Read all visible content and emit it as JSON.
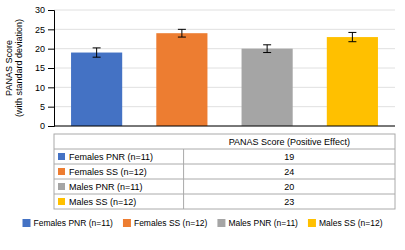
{
  "chart_data": {
    "type": "bar",
    "categories": [
      "Females PNR (n=11)",
      "Females SS (n=12)",
      "Males PNR (n=11)",
      "Males SS (n=12)"
    ],
    "values": [
      19,
      24,
      20,
      23
    ],
    "errors": [
      1.2,
      1.0,
      1.0,
      1.2
    ],
    "colors": [
      "#4472C4",
      "#ED7D31",
      "#A5A5A5",
      "#FFC000"
    ],
    "ylabel": "PANAS Score\n(with standard deviation)",
    "table_header": "PANAS Score (Positive Effect)",
    "ylim": [
      0,
      30
    ],
    "yticks": [
      0,
      5,
      10,
      15,
      20,
      25,
      30
    ],
    "grid": true,
    "tick_labels": "y",
    "data_labels": true,
    "legend": "bottom"
  }
}
